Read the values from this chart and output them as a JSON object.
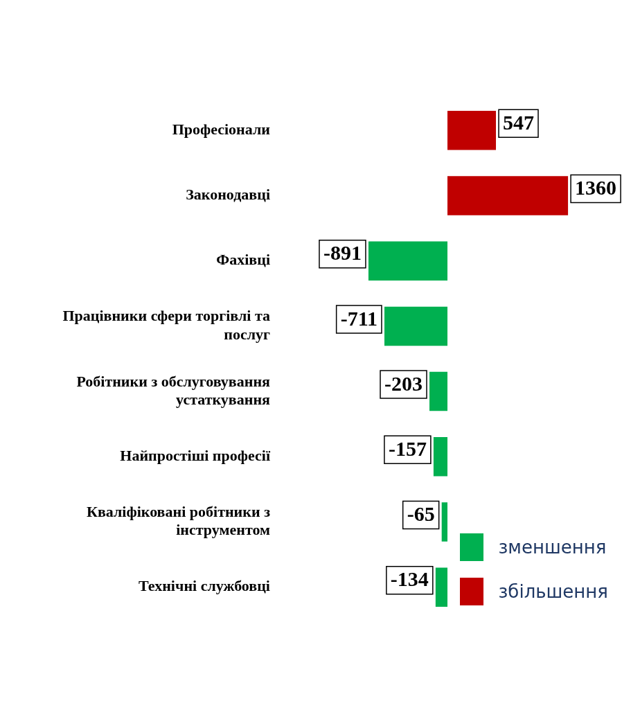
{
  "chart_data": {
    "type": "bar",
    "orientation": "horizontal",
    "stacked": true,
    "categories": [
      "Професіонали",
      "Законодавці",
      "Фахівці",
      "Працівники сфери торгівлі та послуг",
      "Робітники з обслуговування устаткування",
      "Найпростіші професії",
      "Кваліфіковані робітники з інструментом",
      "Технічні службовці"
    ],
    "series": [
      {
        "name": "зменшення",
        "color": "#00b050",
        "values": [
          null,
          null,
          -891,
          -711,
          -203,
          -157,
          -65,
          -134
        ]
      },
      {
        "name": "збільшення",
        "color": "#c00000",
        "values": [
          547,
          1360,
          null,
          null,
          null,
          null,
          null,
          null
        ]
      }
    ],
    "data_labels": true,
    "legend": "bottom right"
  }
}
